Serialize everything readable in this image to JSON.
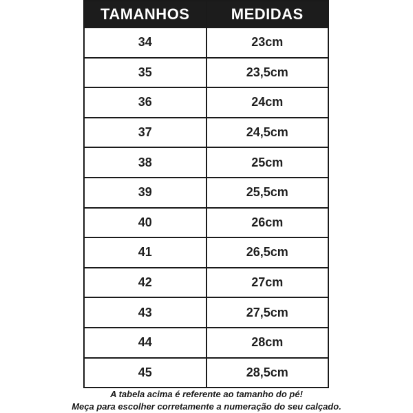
{
  "chart_data": {
    "type": "table",
    "title": "",
    "columns": [
      "TAMANHOS",
      "MEDIDAS"
    ],
    "rows": [
      [
        "34",
        "23cm"
      ],
      [
        "35",
        "23,5cm"
      ],
      [
        "36",
        "24cm"
      ],
      [
        "37",
        "24,5cm"
      ],
      [
        "38",
        "25cm"
      ],
      [
        "39",
        "25,5cm"
      ],
      [
        "40",
        "26cm"
      ],
      [
        "41",
        "26,5cm"
      ],
      [
        "42",
        "27cm"
      ],
      [
        "43",
        "27,5cm"
      ],
      [
        "44",
        "28cm"
      ],
      [
        "45",
        "28,5cm"
      ]
    ]
  },
  "footer": {
    "line1": "A tabela acima é referente ao tamanho do pé!",
    "line2": "Meça para escolher corretamente a numeração do seu calçado."
  },
  "colors": {
    "header_bg": "#1c1c1c",
    "header_text": "#ffffff",
    "border": "#1a1a1a",
    "cell_text": "#1f1f1f",
    "background": "#ffffff"
  }
}
